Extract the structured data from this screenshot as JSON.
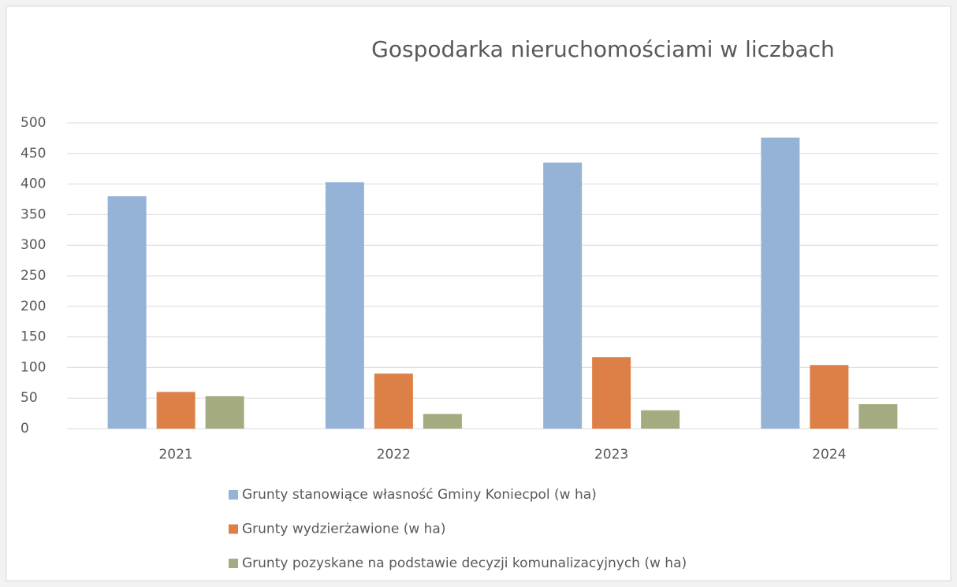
{
  "chart_data": {
    "type": "bar",
    "title": "Gospodarka nieruchomościami w liczbach",
    "categories": [
      "2021",
      "2022",
      "2023",
      "2024"
    ],
    "series": [
      {
        "name": "Grunty stanowiące własność Gminy Koniecpol (w ha)",
        "color": "#95b3d7",
        "values": [
          380,
          403,
          435,
          476
        ]
      },
      {
        "name": "Grunty wydzierżawione (w ha)",
        "color": "#dd8047",
        "values": [
          60,
          90,
          117,
          104
        ]
      },
      {
        "name": "Grunty pozyskane na podstawie decyzji komunalizacyjnych (w ha)",
        "color": "#a5ab81",
        "values": [
          53,
          24,
          30,
          40
        ]
      }
    ],
    "ylim": [
      0,
      500
    ],
    "yticks": [
      0,
      50,
      100,
      150,
      200,
      250,
      300,
      350,
      400,
      450,
      500
    ],
    "grid": true,
    "legend": "bottom"
  }
}
